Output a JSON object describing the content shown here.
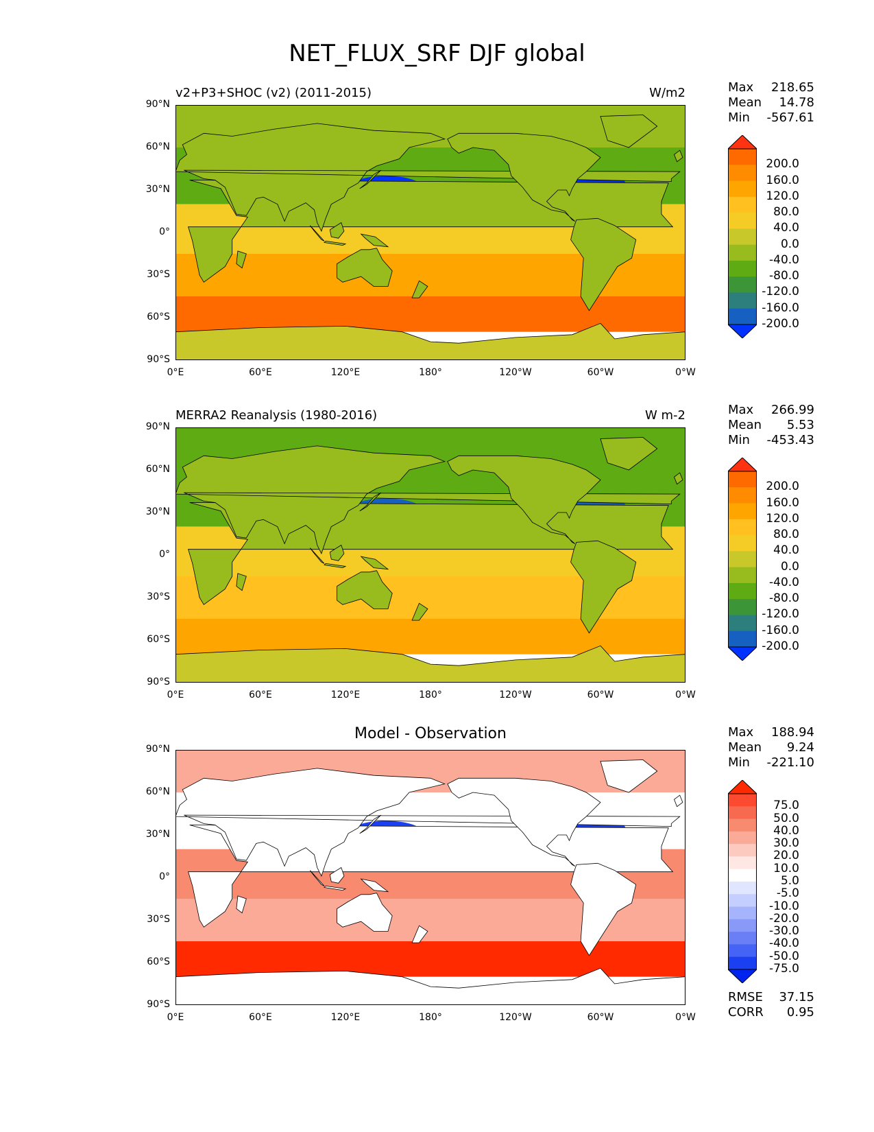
{
  "figure": {
    "title": "NET_FLUX_SRF DJF global"
  },
  "panels": [
    {
      "title_left": "v2+P3+SHOC (v2) (2011-2015)",
      "title_right": "W/m2",
      "title_center": "",
      "stats": [
        {
          "k": "Max",
          "v": "218.65"
        },
        {
          "k": "Mean",
          "v": "14.78"
        },
        {
          "k": "Min",
          "v": "-567.61"
        }
      ],
      "colorbar": {
        "labels": [
          "200.0",
          "160.0",
          "120.0",
          "80.0",
          "40.0",
          "0.0",
          "-40.0",
          "-80.0",
          "-120.0",
          "-160.0",
          "-200.0"
        ],
        "colors": [
          "#ff3311",
          "#ff6a00",
          "#ff8c00",
          "#ffa500",
          "#ffc020",
          "#f4cc25",
          "#c8c82a",
          "#98bc1e",
          "#5eab14",
          "#3c9638",
          "#2d7f7d",
          "#1560c0",
          "#0033ff"
        ]
      },
      "map_palette": {
        "land": "#98bc1e",
        "tropics": "#f4cc25",
        "subtropics": "#ffa500",
        "southern_ocean": "#ff6a00",
        "antarctica": "#c8c82a",
        "arctic": "#98bc1e",
        "wbc": "#0033ff",
        "north_ocean": "#5eab14"
      }
    },
    {
      "title_left": "MERRA2 Reanalysis (1980-2016)",
      "title_right": "W m-2",
      "title_center": "",
      "stats": [
        {
          "k": "Max",
          "v": "266.99"
        },
        {
          "k": "Mean",
          "v": "5.53"
        },
        {
          "k": "Min",
          "v": "-453.43"
        }
      ],
      "colorbar": {
        "labels": [
          "200.0",
          "160.0",
          "120.0",
          "80.0",
          "40.0",
          "0.0",
          "-40.0",
          "-80.0",
          "-120.0",
          "-160.0",
          "-200.0"
        ],
        "colors": [
          "#ff3311",
          "#ff6a00",
          "#ff8c00",
          "#ffa500",
          "#ffc020",
          "#f4cc25",
          "#c8c82a",
          "#98bc1e",
          "#5eab14",
          "#3c9638",
          "#2d7f7d",
          "#1560c0",
          "#0033ff"
        ]
      },
      "map_palette": {
        "land": "#98bc1e",
        "tropics": "#f4cc25",
        "subtropics": "#ffc020",
        "southern_ocean": "#ffa500",
        "antarctica": "#c8c82a",
        "arctic": "#5eab14",
        "wbc": "#1560c0",
        "north_ocean": "#5eab14"
      }
    },
    {
      "title_left": "",
      "title_right": "",
      "title_center": "Model - Observation",
      "stats": [
        {
          "k": "Max",
          "v": "188.94"
        },
        {
          "k": "Mean",
          "v": "9.24"
        },
        {
          "k": "Min",
          "v": "-221.10"
        }
      ],
      "colorbar": {
        "labels": [
          "75.0",
          "50.0",
          "40.0",
          "30.0",
          "20.0",
          "10.0",
          "5.0",
          "-5.0",
          "-10.0",
          "-20.0",
          "-30.0",
          "-40.0",
          "-50.0",
          "-75.0"
        ],
        "colors": [
          "#ff2a00",
          "#fb4a30",
          "#f86a50",
          "#f88a70",
          "#fbaa98",
          "#fdcac0",
          "#ffe8e4",
          "#ffffff",
          "#e0e6ff",
          "#c4ceff",
          "#a6b4fb",
          "#8899f8",
          "#6a7ef5",
          "#4563f4",
          "#1a40f2",
          "#0024f0"
        ]
      },
      "map_palette": {
        "land": "#ffffff",
        "tropics": "#f88a70",
        "subtropics": "#fbaa98",
        "southern_ocean": "#ff2a00",
        "antarctica": "#ffffff",
        "arctic": "#fbaa98",
        "wbc": "#1a40f2",
        "north_ocean": "#ffffff"
      },
      "bottom_stats": [
        {
          "k": "RMSE",
          "v": "37.15"
        },
        {
          "k": "CORR",
          "v": "0.95"
        }
      ]
    }
  ],
  "axes": {
    "y_ticks": [
      "90°N",
      "60°N",
      "30°N",
      "0°",
      "30°S",
      "60°S",
      "90°S"
    ],
    "x_ticks": [
      "0°E",
      "60°E",
      "120°E",
      "180°",
      "120°W",
      "60°W",
      "0°W"
    ]
  }
}
